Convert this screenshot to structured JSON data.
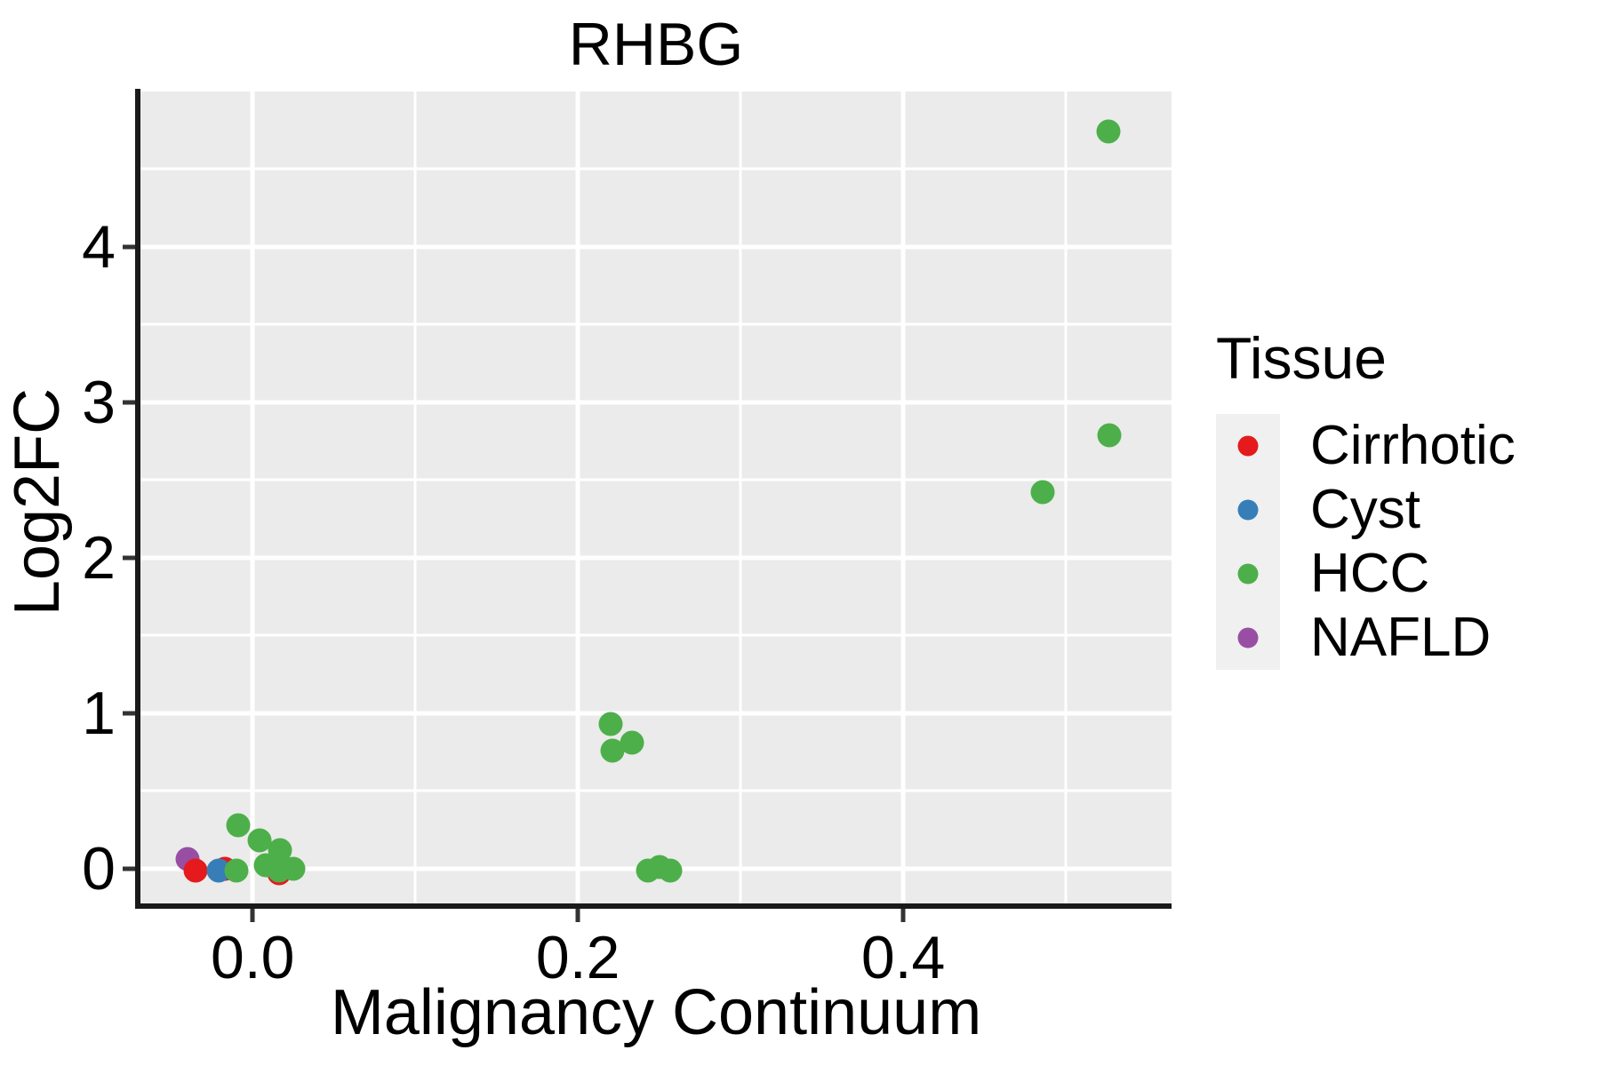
{
  "figure": {
    "title": "RHBG",
    "x_axis_label": "Malignancy Continuum",
    "y_axis_label": "Log2FC",
    "legend_title": "Tissue"
  },
  "colors": {
    "panel_background": "#EBEBEB",
    "gridline": "#FFFFFF",
    "spine": "#1A1A1A",
    "tick": "#333333",
    "text": "#000000",
    "legend_key_background": "#F0F0F0",
    "cirrhotic": "#E41A1C",
    "cyst": "#377EB8",
    "hcc": "#4DAF4A",
    "nafld": "#984EA3"
  },
  "chart_data": {
    "type": "scatter",
    "title": "RHBG",
    "xlabel": "Malignancy Continuum",
    "ylabel": "Log2FC",
    "xlim": [
      -0.069,
      0.565
    ],
    "ylim": [
      -0.223,
      5.0
    ],
    "grid": "white major+minor gridlines on gray panel",
    "x_ticks": {
      "values": [
        0.0,
        0.2,
        0.4
      ],
      "labels": [
        "0.0",
        "0.2",
        "0.4"
      ]
    },
    "x_minor_gridlines": [
      0.1,
      0.3,
      0.5
    ],
    "y_ticks": {
      "values": [
        0,
        1,
        2,
        3,
        4
      ],
      "labels": [
        "0",
        "1",
        "2",
        "3",
        "4"
      ]
    },
    "y_minor_gridlines": [
      0.5,
      1.5,
      2.5,
      3.5,
      4.5
    ],
    "legend": {
      "title": "Tissue",
      "position": "right",
      "entries": [
        {
          "label": "Cirrhotic",
          "color": "#E41A1C"
        },
        {
          "label": "Cyst",
          "color": "#377EB8"
        },
        {
          "label": "HCC",
          "color": "#4DAF4A"
        },
        {
          "label": "NAFLD",
          "color": "#984EA3"
        }
      ]
    },
    "series": [
      {
        "name": "NAFLD",
        "color": "#984EA3",
        "points": [
          [
            -0.04,
            0.06
          ]
        ]
      },
      {
        "name": "Cirrhotic",
        "color": "#E41A1C",
        "points": [
          [
            -0.035,
            -0.01
          ],
          [
            -0.017,
            0.0
          ],
          [
            0.016,
            -0.03
          ]
        ]
      },
      {
        "name": "Cyst",
        "color": "#377EB8",
        "points": [
          [
            -0.021,
            -0.01
          ]
        ]
      },
      {
        "name": "HCC",
        "color": "#4DAF4A",
        "points": [
          [
            -0.01,
            -0.01
          ],
          [
            -0.009,
            0.28
          ],
          [
            0.004,
            0.18
          ],
          [
            0.008,
            0.02
          ],
          [
            0.016,
            -0.01
          ],
          [
            0.017,
            0.12
          ],
          [
            0.025,
            0.0
          ],
          [
            0.22,
            0.93
          ],
          [
            0.221,
            0.76
          ],
          [
            0.233,
            0.81
          ],
          [
            0.243,
            -0.01
          ],
          [
            0.25,
            0.01
          ],
          [
            0.257,
            -0.01
          ],
          [
            0.486,
            2.42
          ],
          [
            0.527,
            2.79
          ],
          [
            0.526,
            4.74
          ]
        ]
      }
    ]
  }
}
